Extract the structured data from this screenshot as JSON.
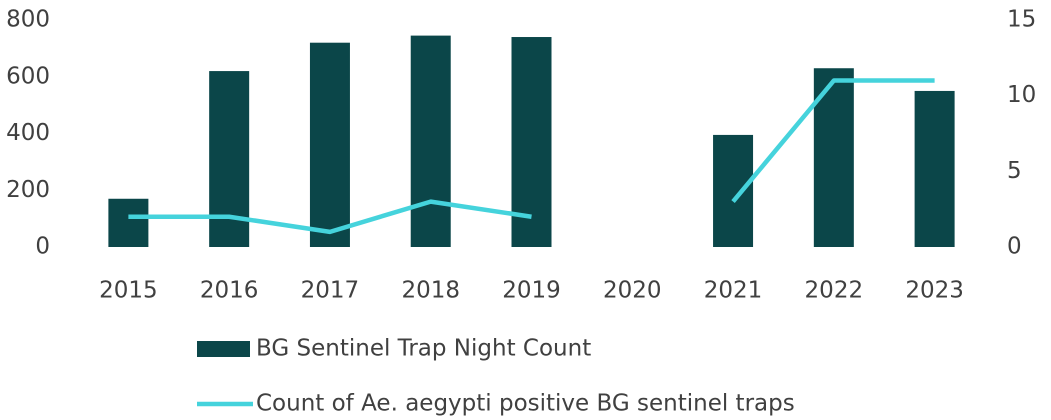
{
  "chart_data": {
    "type": "bar",
    "categories": [
      "2015",
      "2016",
      "2017",
      "2018",
      "2019",
      "2020",
      "2021",
      "2022",
      "2023"
    ],
    "series": [
      {
        "name": "BG Sentinel Trap Night Count",
        "type": "bar",
        "color": "#0b4649",
        "values": [
          170,
          620,
          720,
          745,
          740,
          null,
          395,
          630,
          550
        ]
      },
      {
        "name": "Count of Ae. aegypti positive BG sentinel traps",
        "type": "line",
        "axis": "y2",
        "color": "#45d3dc",
        "values": [
          2,
          2,
          1,
          3,
          2,
          null,
          3,
          11,
          11
        ]
      }
    ],
    "ylim": [
      0,
      800
    ],
    "yticks": [
      0,
      200,
      400,
      600,
      800
    ],
    "y2lim": [
      0,
      15
    ],
    "y2ticks": [
      0,
      5,
      10,
      15
    ],
    "legend": "bottom"
  }
}
